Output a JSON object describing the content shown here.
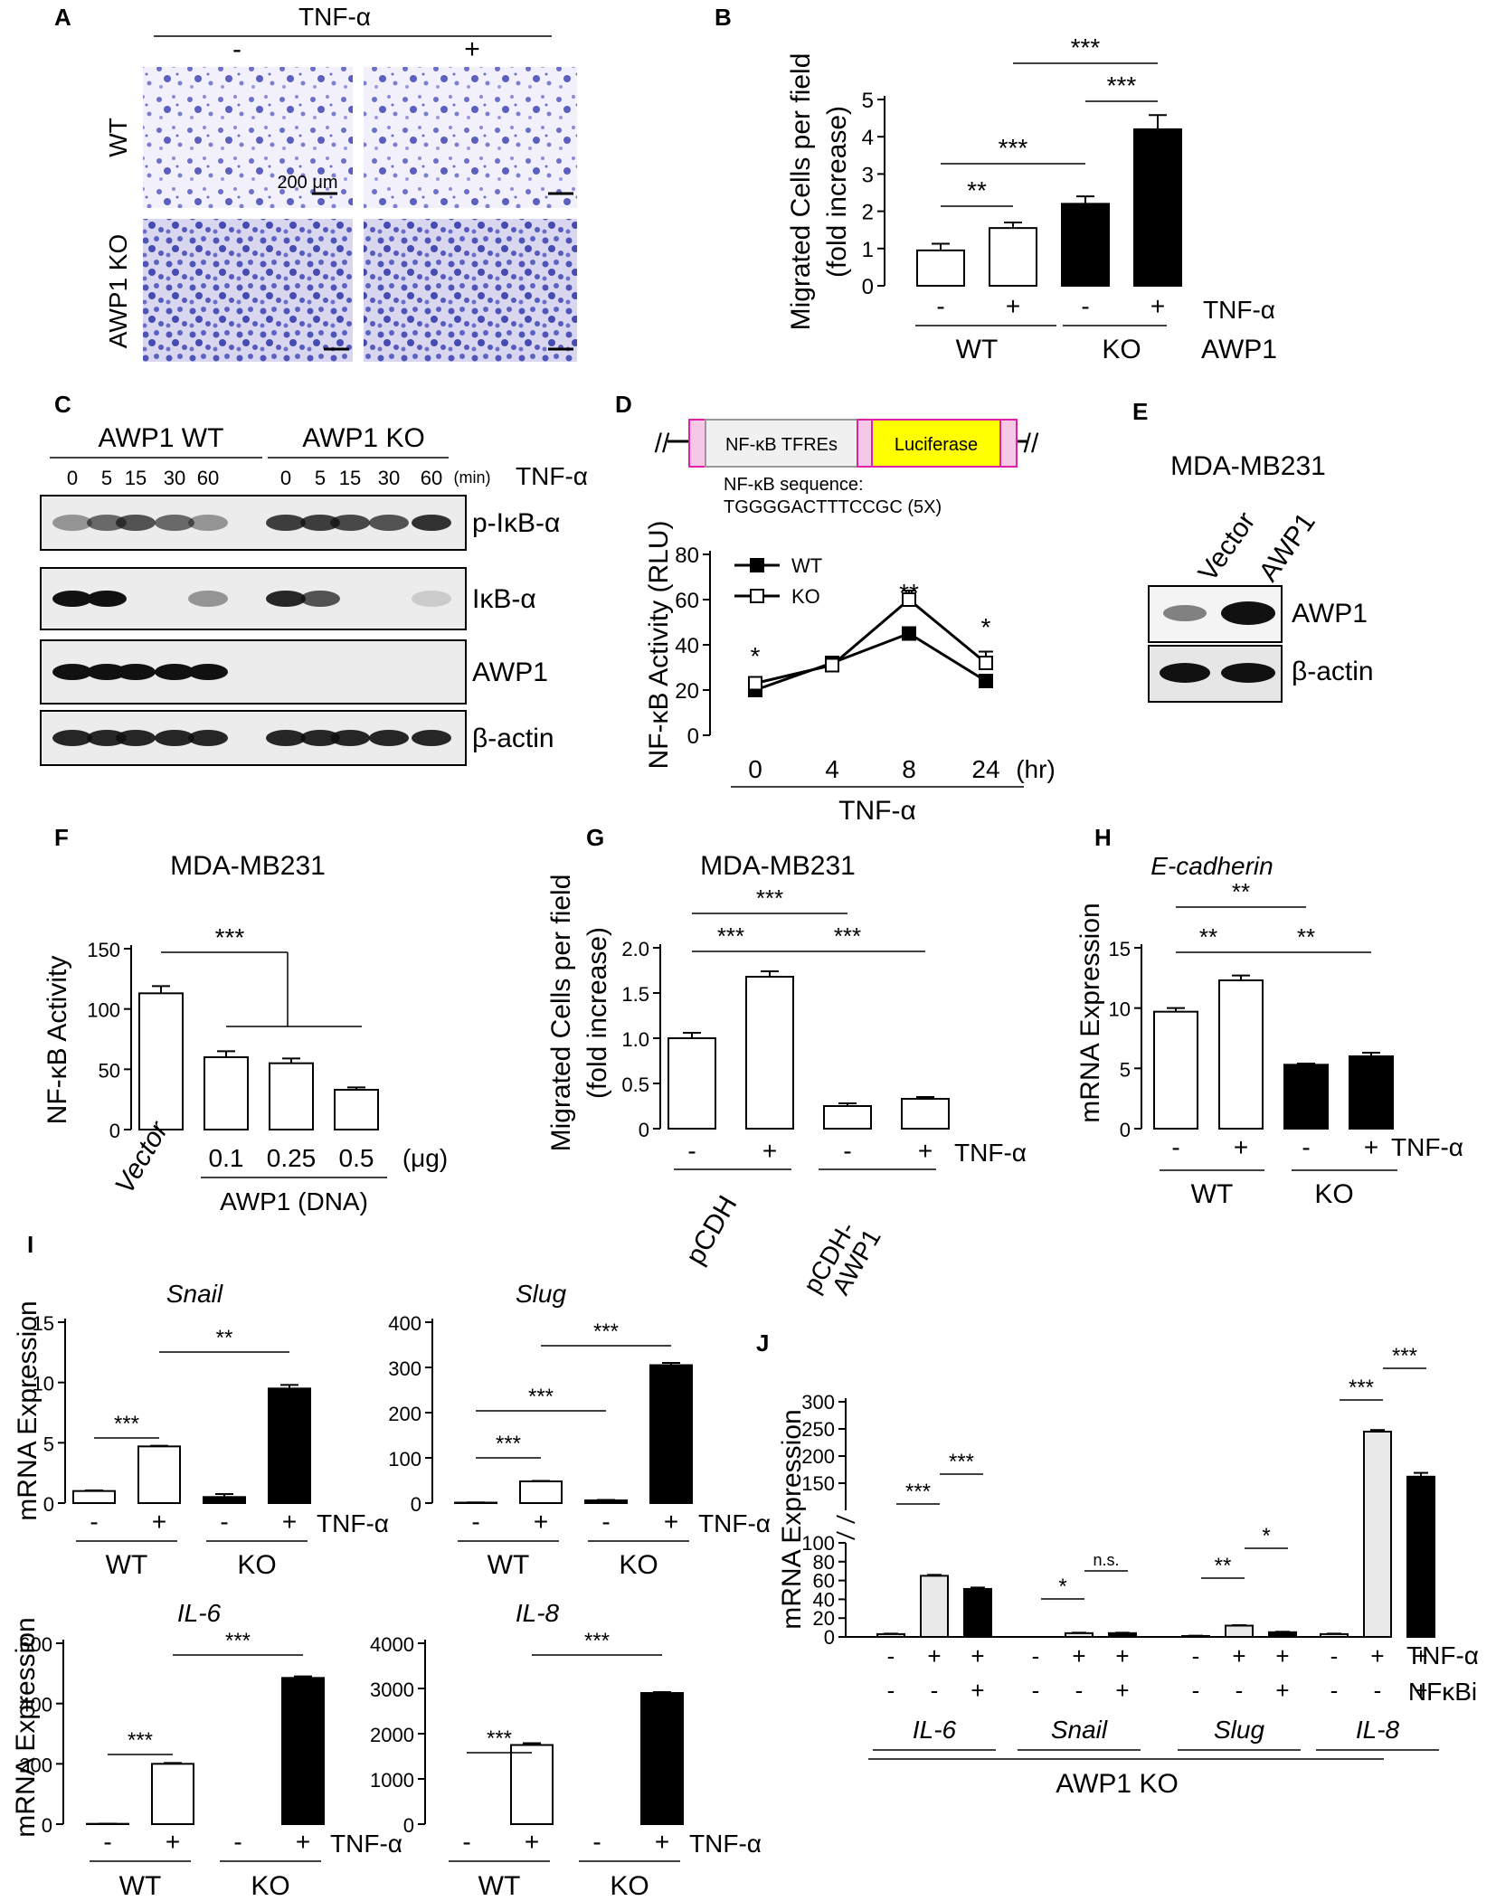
{
  "chart_data": [
    {
      "panel": "A",
      "type": "image",
      "condition": "TNF-α",
      "col_labels": [
        "-",
        "+"
      ],
      "row_labels": [
        "WT",
        "AWP1 KO"
      ],
      "scale_bar": "200 μm"
    },
    {
      "panel": "B",
      "type": "bar",
      "ylabel": "Migrated Cells per field (fold increase)",
      "ylim": [
        0,
        5
      ],
      "yticks": [
        "0",
        "1",
        "2",
        "3",
        "4",
        "5"
      ],
      "tnf": [
        "-",
        "+",
        "-",
        "+"
      ],
      "tnf_label": "TNF-α",
      "groups": [
        "WT",
        "KO"
      ],
      "group_label": "AWP1",
      "values": [
        0.95,
        1.55,
        2.2,
        4.2
      ],
      "errors": [
        0.18,
        0.15,
        0.2,
        0.38
      ],
      "fills": [
        "#ffffff",
        "#ffffff",
        "#000000",
        "#000000"
      ],
      "significance": [
        {
          "from": 0,
          "to": 1,
          "label": "**"
        },
        {
          "from": 0,
          "to": 2,
          "label": "***"
        },
        {
          "from": 2,
          "to": 3,
          "label": "***"
        },
        {
          "from": 1,
          "to": 3,
          "label": "***"
        }
      ]
    },
    {
      "panel": "C",
      "type": "western_blot",
      "groups": [
        "AWP1 WT",
        "AWP1 KO"
      ],
      "times": [
        "0",
        "5",
        "15",
        "30",
        "60"
      ],
      "time_unit": "(min)",
      "treatment": "TNF-α",
      "bands": [
        "p-IκB-α",
        "IκB-α",
        "AWP1",
        "β-actin"
      ]
    },
    {
      "panel": "D",
      "type": "line",
      "construct": {
        "box1": "NF-κB TFREs",
        "box2": "Luciferase",
        "note1": "NF-κB sequence:",
        "note2": "TGGGGACTTTCCGC (5X)"
      },
      "ylabel": "NF-κB Activity (RLU)",
      "ylim": [
        0,
        80
      ],
      "yticks": [
        "0",
        "20",
        "40",
        "60",
        "80"
      ],
      "x": [
        "0",
        "4",
        "8",
        "24"
      ],
      "x_unit": "(hr)",
      "xlabel": "TNF-α",
      "series": [
        {
          "name": "WT",
          "values": [
            20,
            32,
            45,
            24
          ],
          "errors": [
            1.5,
            2,
            2,
            1.5
          ],
          "marker": "filled"
        },
        {
          "name": "KO",
          "values": [
            23,
            31,
            60,
            32
          ],
          "errors": [
            2,
            2,
            4,
            5
          ],
          "marker": "open"
        }
      ],
      "significance": [
        "*",
        "",
        "**",
        "*"
      ]
    },
    {
      "panel": "E",
      "type": "western_blot",
      "title": "MDA-MB231",
      "lanes": [
        "Vector",
        "AWP1"
      ],
      "bands": [
        "AWP1",
        "β-actin"
      ]
    },
    {
      "panel": "F",
      "type": "bar",
      "title": "MDA-MB231",
      "ylabel": "NF-κB Activity",
      "ylim": [
        0,
        150
      ],
      "yticks": [
        "0",
        "50",
        "100",
        "150"
      ],
      "categories": [
        "Vector",
        "0.1",
        "0.25",
        "0.5"
      ],
      "unit": "(μg)",
      "group_label": "AWP1 (DNA)",
      "values": [
        113,
        60,
        55,
        33
      ],
      "errors": [
        6,
        5,
        4,
        2
      ],
      "significance": "***"
    },
    {
      "panel": "G",
      "type": "bar",
      "title": "MDA-MB231",
      "ylabel": "Migrated Cells per field (fold increase)",
      "ylim": [
        0,
        2.0
      ],
      "yticks": [
        "0",
        "0.5",
        "1.0",
        "1.5",
        "2.0"
      ],
      "tnf": [
        "-",
        "+",
        "-",
        "+"
      ],
      "tnf_label": "TNF-α",
      "groups": [
        "pCDH",
        "pCDH-AWP1"
      ],
      "values": [
        1.0,
        1.68,
        0.25,
        0.33
      ],
      "errors": [
        0.06,
        0.06,
        0.03,
        0.02
      ],
      "significance": [
        {
          "from": 0,
          "to": 2,
          "label": "***"
        },
        {
          "from": 0,
          "to": 1,
          "label": "***"
        },
        {
          "from": 1,
          "to": 3,
          "label": "***"
        }
      ]
    },
    {
      "panel": "H",
      "type": "bar",
      "title": "E-cadherin",
      "ylabel": "mRNA Expression",
      "ylim": [
        0,
        15
      ],
      "yticks": [
        "0",
        "5",
        "10",
        "15"
      ],
      "tnf": [
        "-",
        "+",
        "-",
        "+"
      ],
      "tnf_label": "TNF-α",
      "groups": [
        "WT",
        "KO"
      ],
      "values": [
        9.7,
        12.3,
        5.3,
        6.0
      ],
      "errors": [
        0.3,
        0.4,
        0.1,
        0.3
      ],
      "fills": [
        "#ffffff",
        "#ffffff",
        "#000000",
        "#000000"
      ],
      "significance": [
        {
          "from": 0,
          "to": 2,
          "label": "**"
        },
        {
          "from": 0,
          "to": 1,
          "label": "**"
        },
        {
          "from": 1,
          "to": 3,
          "label": "**"
        }
      ]
    },
    {
      "panel": "I",
      "type": "bar",
      "ylabel": "mRNA Expression",
      "tnf_label": "TNF-α",
      "groups": [
        "WT",
        "KO"
      ],
      "tnf": [
        "-",
        "+",
        "-",
        "+"
      ],
      "subplots": [
        {
          "title": "Snail",
          "ylim": [
            0,
            15
          ],
          "yticks": [
            "0",
            "5",
            "10",
            "15"
          ],
          "values": [
            1.0,
            4.7,
            0.5,
            9.5
          ],
          "errors": [
            0.05,
            0.05,
            0.25,
            0.3
          ],
          "significance": [
            {
              "from": 0,
              "to": 1,
              "label": "***"
            },
            {
              "from": 1,
              "to": 3,
              "label": "**"
            }
          ]
        },
        {
          "title": "Slug",
          "ylim": [
            0,
            400
          ],
          "yticks": [
            "0",
            "100",
            "200",
            "300",
            "400"
          ],
          "values": [
            1,
            48,
            6,
            305
          ],
          "errors": [
            0.5,
            1,
            1,
            5
          ],
          "significance": [
            {
              "from": 0,
              "to": 1,
              "label": "***"
            },
            {
              "from": 0,
              "to": 2,
              "label": "***"
            },
            {
              "from": 1,
              "to": 3,
              "label": "***"
            }
          ]
        },
        {
          "title": "IL-6",
          "ylim": [
            0,
            600
          ],
          "yticks": [
            "0",
            "200",
            "400",
            "600"
          ],
          "values": [
            1,
            200,
            0,
            485
          ],
          "errors": [
            0.5,
            3,
            0,
            5
          ],
          "significance": [
            {
              "from": 0,
              "to": 1,
              "label": "***"
            },
            {
              "from": 1,
              "to": 3,
              "label": "***"
            }
          ]
        },
        {
          "title": "IL-8",
          "ylim": [
            0,
            4000
          ],
          "yticks": [
            "0",
            "1000",
            "2000",
            "3000",
            "4000"
          ],
          "values": [
            0,
            1750,
            0,
            2900
          ],
          "errors": [
            0,
            40,
            0,
            20
          ],
          "significance": [
            {
              "from": 0,
              "to": 1,
              "label": "***"
            },
            {
              "from": 1,
              "to": 3,
              "label": "***"
            }
          ]
        }
      ]
    },
    {
      "panel": "J",
      "type": "bar",
      "ylabel": "mRNA Expression",
      "yticks_low": [
        "0",
        "20",
        "40",
        "60",
        "80",
        "100"
      ],
      "yticks_high": [
        "100",
        "150",
        "200",
        "250",
        "300"
      ],
      "genes": [
        "IL-6",
        "Snail",
        "Slug",
        "IL-8"
      ],
      "group_label": "AWP1 KO",
      "tnf": [
        "-",
        "+",
        "+"
      ],
      "nfkbi": [
        "-",
        "-",
        "+"
      ],
      "tnf_label": "TNF-α",
      "nfkbi_label": "NFκBi",
      "values": [
        [
          3,
          65,
          51
        ],
        [
          0,
          4,
          4
        ],
        [
          1,
          12,
          5
        ],
        [
          3,
          245,
          162
        ]
      ],
      "errors": [
        [
          0.5,
          1,
          1.5
        ],
        [
          0,
          0.5,
          0.5
        ],
        [
          0.3,
          0.5,
          0.5
        ],
        [
          0.5,
          3,
          7
        ]
      ],
      "fills": [
        "#e8e8e8",
        "#e8e8e8",
        "#000000"
      ],
      "significance": [
        [
          "***",
          "***"
        ],
        [
          "*",
          "n.s."
        ],
        [
          "**",
          "*"
        ],
        [
          "***",
          "***"
        ]
      ]
    }
  ]
}
